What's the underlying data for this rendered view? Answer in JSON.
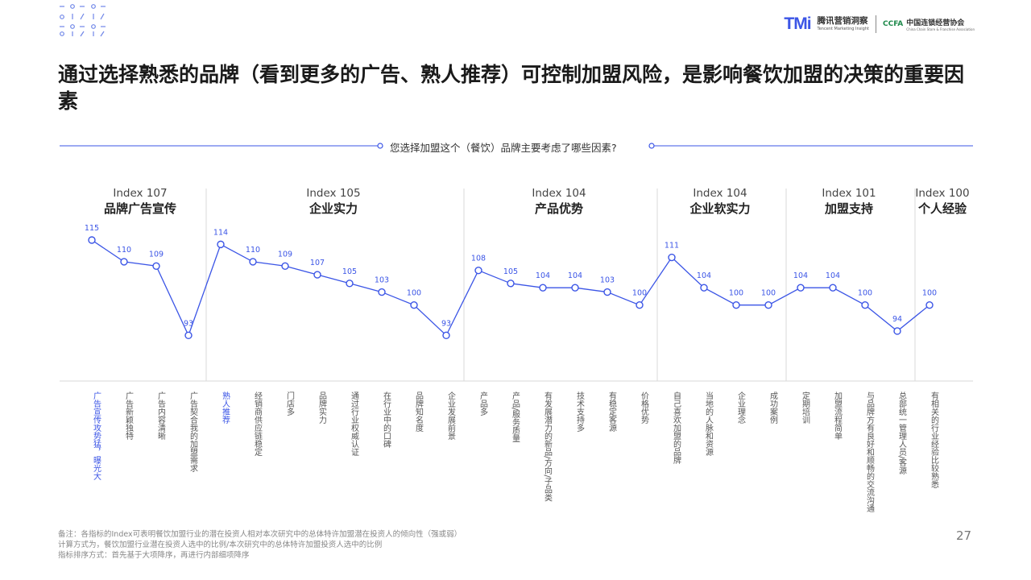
{
  "header": {
    "brand_logo": "TMi",
    "brand_name_cn": "腾讯营销洞察",
    "brand_name_en": "Tencent Marketing Insight",
    "partner_logo": "CCFA",
    "partner_name_cn": "中国连锁经营协会",
    "partner_name_en": "China Chain Store & Franchise Association"
  },
  "title": "通过选择熟悉的品牌（看到更多的广告、熟人推荐）可控制加盟风险，是影响餐饮加盟的决策的重要因素",
  "question": "您选择加盟这个（餐饮）品牌主要考虑了哪些因素?",
  "footnotes": [
    "备注：各指标的Index可表明餐饮加盟行业的潜在投资人相对本次研究中的总体特许加盟潜在投资人的倾向性（强或弱）",
    "计算方式为，餐饮加盟行业潜在投资人选中的比例/本次研究中的总体特许加盟投资人选中的比例",
    "指标排序方式：首先基于大项降序，再进行内部细项降序"
  ],
  "page_number": "27",
  "colors": {
    "accent": "#3b55e6",
    "divider": "#d9d9d9",
    "text": "#333333"
  },
  "chart_data": {
    "type": "line",
    "groups": [
      {
        "index_label": "Index 107",
        "name": "品牌广告宣传",
        "count": 4
      },
      {
        "index_label": "Index 105",
        "name": "企业实力",
        "count": 8
      },
      {
        "index_label": "Index 104",
        "name": "产品优势",
        "count": 6
      },
      {
        "index_label": "Index 104",
        "name": "企业软实力",
        "count": 4
      },
      {
        "index_label": "Index 101",
        "name": "加盟支持",
        "count": 4
      },
      {
        "index_label": "Index 100",
        "name": "个人经验",
        "count": 1
      }
    ],
    "categories": [
      "广告宣传攻势猛，曝光大",
      "广告新颖独特",
      "广告内容清晰",
      "广告契合我的加盟需求",
      "熟人推荐",
      "经销商供应链稳定",
      "门店多",
      "品牌实力",
      "通过行业权威认证",
      "在行业中的口碑",
      "品牌知名度",
      "企业发展前景",
      "产品多",
      "产品/服务质量",
      "有发展潜力的新品/方向/子品类",
      "技术支持多",
      "有稳定客源",
      "价格优势",
      "自己喜欢加盟的品牌",
      "当地的人脉和资源",
      "企业理念",
      "成功案例",
      "定期培训",
      "加盟流程简单",
      "与品牌方有良好和顺畅的交流沟通",
      "总部统一管理人员/客源",
      "有相关的行业经验比较熟悉"
    ],
    "highlighted": [
      0,
      4
    ],
    "values": [
      115,
      110,
      109,
      93,
      114,
      110,
      109,
      107,
      105,
      103,
      100,
      93,
      108,
      105,
      104,
      104,
      103,
      100,
      111,
      104,
      100,
      100,
      104,
      104,
      100,
      94,
      100
    ],
    "value_labels": [
      "115",
      "110",
      "109",
      "93",
      "114",
      "110",
      "109",
      "107",
      "105",
      "103",
      "100",
      "93",
      "108",
      "105",
      "104",
      "104",
      "103",
      "100",
      "111",
      "104",
      "100",
      "100",
      "104",
      "104",
      "100",
      "94",
      "100"
    ],
    "legend": "none",
    "grid": false
  }
}
